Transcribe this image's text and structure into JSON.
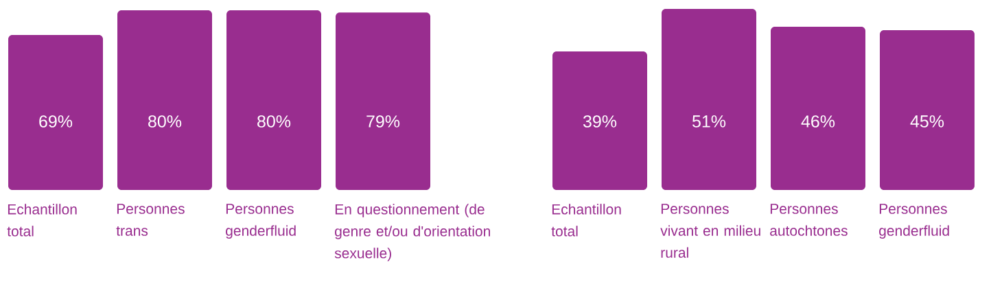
{
  "chart_data": [
    {
      "type": "bar",
      "categories": [
        "Echantillon total",
        "Personnes trans",
        "Personnes genderfluid",
        "En questionnement (de genre et/ou d'orientation sexuelle)"
      ],
      "values": [
        69,
        80,
        80,
        79
      ],
      "value_labels": [
        "69%",
        "80%",
        "80%",
        "79%"
      ],
      "color": "#992d8f",
      "ylim": [
        0,
        80
      ]
    },
    {
      "type": "bar",
      "categories": [
        "Echantillon total",
        "Personnes vivant en milieu rural",
        "Personnes autochtones",
        "Personnes genderfluid"
      ],
      "values": [
        39,
        51,
        46,
        45
      ],
      "value_labels": [
        "39%",
        "51%",
        "46%",
        "45%"
      ],
      "color": "#992d8f",
      "ylim": [
        0,
        51
      ]
    }
  ]
}
